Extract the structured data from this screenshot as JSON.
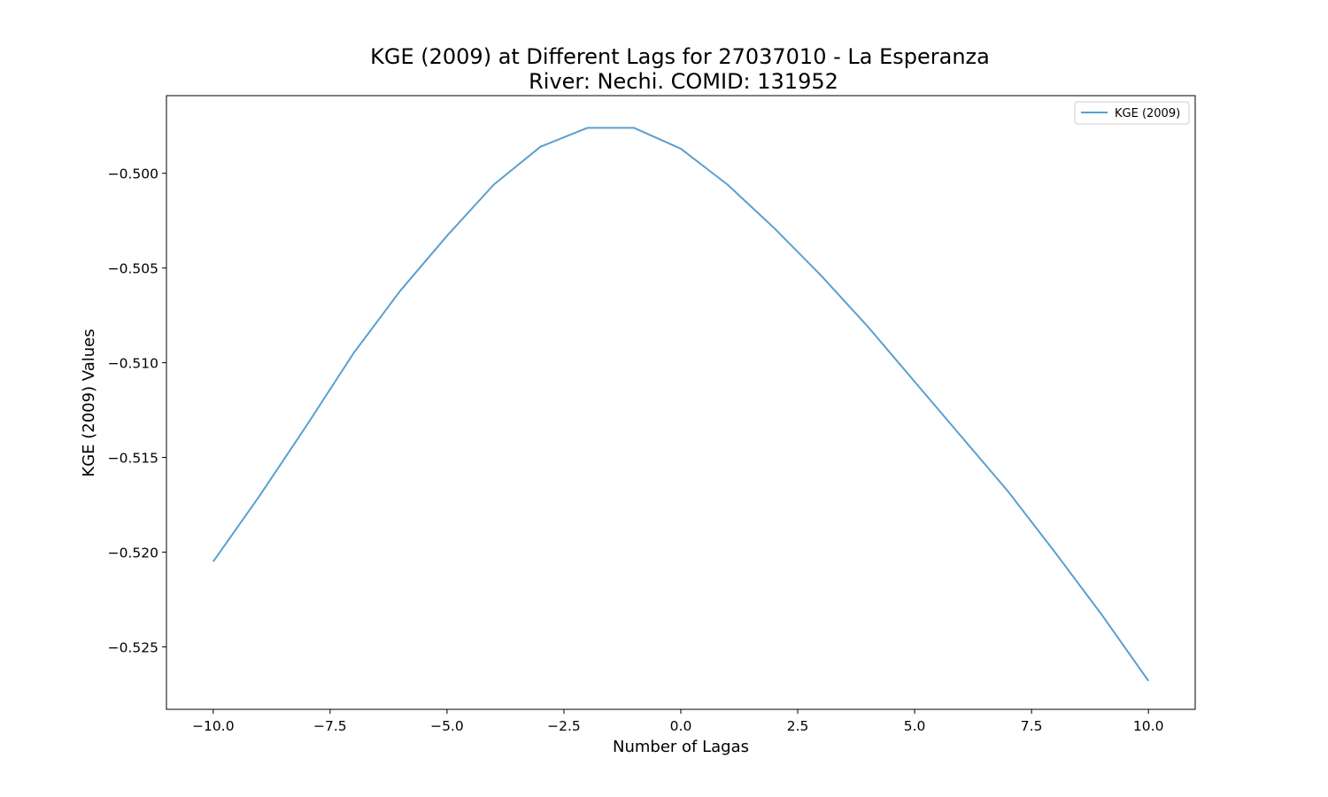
{
  "chart_data": {
    "type": "line",
    "title": "KGE (2009) at Different Lags for 27037010 - La Esperanza",
    "subtitle": "River: Nechi. COMID: 131952",
    "xlabel": "Number of Lagas",
    "ylabel": "KGE (2009) Values",
    "xlim": [
      -11,
      11
    ],
    "ylim": [
      -0.5283,
      -0.4959
    ],
    "xticks": [
      -10.0,
      -7.5,
      -5.0,
      -2.5,
      0.0,
      2.5,
      5.0,
      7.5,
      10.0
    ],
    "xtick_labels": [
      "−10.0",
      "−7.5",
      "−5.0",
      "−2.5",
      "0.0",
      "2.5",
      "5.0",
      "7.5",
      "10.0"
    ],
    "yticks": [
      -0.5,
      -0.505,
      -0.51,
      -0.515,
      -0.52,
      -0.525
    ],
    "ytick_labels": [
      "−0.500",
      "−0.505",
      "−0.510",
      "−0.515",
      "−0.520",
      "−0.525"
    ],
    "grid": false,
    "legend_position": "top-right",
    "series": [
      {
        "name": "KGE (2009)",
        "color": "#5a9fd0",
        "x": [
          -10,
          -9,
          -8,
          -7,
          -6,
          -5,
          -4,
          -3,
          -2,
          -1,
          0,
          1,
          2,
          3,
          4,
          5,
          6,
          7,
          8,
          9,
          10
        ],
        "y": [
          -0.5205,
          -0.517,
          -0.5133,
          -0.5095,
          -0.5062,
          -0.5033,
          -0.5006,
          -0.4986,
          -0.4976,
          -0.4976,
          -0.4987,
          -0.5006,
          -0.5029,
          -0.5054,
          -0.5081,
          -0.511,
          -0.5139,
          -0.5168,
          -0.52,
          -0.5233,
          -0.5268
        ]
      }
    ]
  }
}
